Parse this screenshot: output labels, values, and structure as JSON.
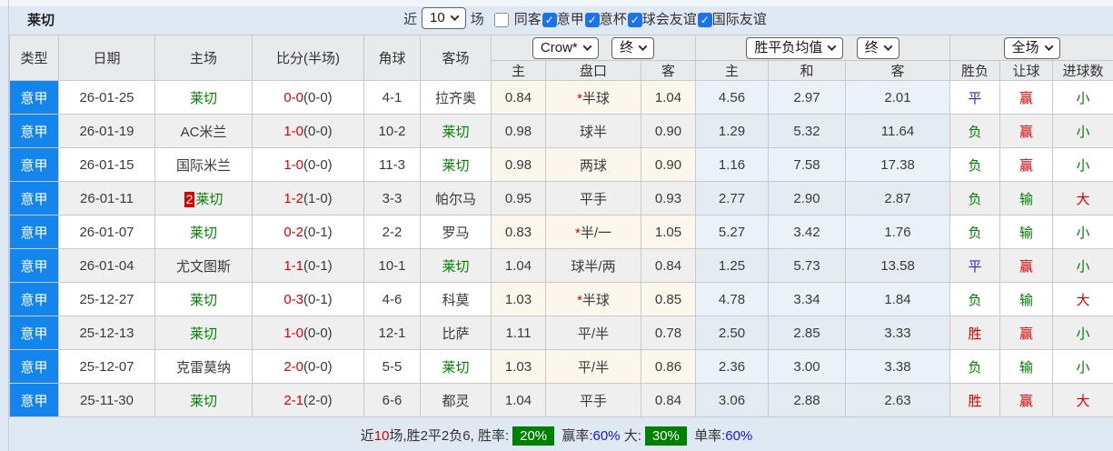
{
  "colors": {
    "league_badge_bg": "#1585ee",
    "lecce_green": "#008000",
    "score_red": "#e00000",
    "result_blue": "#2929c8",
    "rank_badge_bg": "#dd0000",
    "pct_badge_bg": "#008000",
    "checkbox_blue": "#1a73e8"
  },
  "page": {
    "title": "莱切",
    "controls": {
      "near_label": "近",
      "recent_count": "10",
      "matches_label": "场",
      "checkboxes": [
        {
          "label": "同客",
          "checked": false,
          "spaced": true
        },
        {
          "label": "意甲",
          "checked": true,
          "spaced": false
        },
        {
          "label": "意杯",
          "checked": true,
          "spaced": false
        },
        {
          "label": "球会友谊",
          "checked": true,
          "spaced": false
        },
        {
          "label": "国际友谊",
          "checked": true,
          "spaced": false
        }
      ]
    }
  },
  "table": {
    "selects": {
      "odds_company": "Crow*",
      "odds_time": "终",
      "avg_name": "胜平负均值",
      "avg_time": "终",
      "scope": "全场"
    },
    "columns": [
      "类型",
      "日期",
      "主场",
      "比分(半场)",
      "角球",
      "客场",
      "主",
      "盘口",
      "客",
      "主",
      "和",
      "客",
      "胜负",
      "让球",
      "进球数"
    ],
    "rows": [
      {
        "league": "意甲",
        "date": "26-01-25",
        "home": "莱切",
        "home_lecce": true,
        "home_badge": "",
        "score": "0-0",
        "half": "(0-0)",
        "corner": "4-1",
        "away": "拉齐奥",
        "away_lecce": false,
        "crow_home": "0.84",
        "handicap_star": true,
        "handicap": "半球",
        "crow_away": "1.04",
        "avg_home": "4.56",
        "avg_draw": "2.97",
        "avg_away": "2.01",
        "result": "平",
        "result_color": "blue",
        "let_result": "赢",
        "let_color": "red",
        "goal_result": "小",
        "goal_color": "green"
      },
      {
        "league": "意甲",
        "date": "26-01-19",
        "home": "AC米兰",
        "home_lecce": false,
        "home_badge": "",
        "score": "1-0",
        "half": "(0-0)",
        "corner": "10-2",
        "away": "莱切",
        "away_lecce": true,
        "crow_home": "0.98",
        "handicap_star": false,
        "handicap": "球半",
        "crow_away": "0.90",
        "avg_home": "1.29",
        "avg_draw": "5.32",
        "avg_away": "11.64",
        "result": "负",
        "result_color": "green",
        "let_result": "赢",
        "let_color": "red",
        "goal_result": "小",
        "goal_color": "green"
      },
      {
        "league": "意甲",
        "date": "26-01-15",
        "home": "国际米兰",
        "home_lecce": false,
        "home_badge": "",
        "score": "1-0",
        "half": "(0-0)",
        "corner": "11-3",
        "away": "莱切",
        "away_lecce": true,
        "crow_home": "0.98",
        "handicap_star": false,
        "handicap": "两球",
        "crow_away": "0.90",
        "avg_home": "1.16",
        "avg_draw": "7.58",
        "avg_away": "17.38",
        "result": "负",
        "result_color": "green",
        "let_result": "赢",
        "let_color": "red",
        "goal_result": "小",
        "goal_color": "green"
      },
      {
        "league": "意甲",
        "date": "26-01-11",
        "home": "莱切",
        "home_lecce": true,
        "home_badge": "2",
        "score": "1-2",
        "half": "(1-0)",
        "corner": "3-3",
        "away": "帕尔马",
        "away_lecce": false,
        "crow_home": "0.95",
        "handicap_star": false,
        "handicap": "平手",
        "crow_away": "0.93",
        "avg_home": "2.77",
        "avg_draw": "2.90",
        "avg_away": "2.87",
        "result": "负",
        "result_color": "green",
        "let_result": "输",
        "let_color": "green",
        "goal_result": "大",
        "goal_color": "red"
      },
      {
        "league": "意甲",
        "date": "26-01-07",
        "home": "莱切",
        "home_lecce": true,
        "home_badge": "",
        "score": "0-2",
        "half": "(0-1)",
        "corner": "2-2",
        "away": "罗马",
        "away_lecce": false,
        "crow_home": "0.83",
        "handicap_star": true,
        "handicap": "半/一",
        "crow_away": "1.05",
        "avg_home": "5.27",
        "avg_draw": "3.42",
        "avg_away": "1.76",
        "result": "负",
        "result_color": "green",
        "let_result": "输",
        "let_color": "green",
        "goal_result": "小",
        "goal_color": "green"
      },
      {
        "league": "意甲",
        "date": "26-01-04",
        "home": "尤文图斯",
        "home_lecce": false,
        "home_badge": "",
        "score": "1-1",
        "half": "(0-1)",
        "corner": "10-1",
        "away": "莱切",
        "away_lecce": true,
        "crow_home": "1.04",
        "handicap_star": false,
        "handicap": "球半/两",
        "crow_away": "0.84",
        "avg_home": "1.25",
        "avg_draw": "5.73",
        "avg_away": "13.58",
        "result": "平",
        "result_color": "blue",
        "let_result": "赢",
        "let_color": "red",
        "goal_result": "小",
        "goal_color": "green"
      },
      {
        "league": "意甲",
        "date": "25-12-27",
        "home": "莱切",
        "home_lecce": true,
        "home_badge": "",
        "score": "0-3",
        "half": "(0-1)",
        "corner": "4-6",
        "away": "科莫",
        "away_lecce": false,
        "crow_home": "1.03",
        "handicap_star": true,
        "handicap": "半球",
        "crow_away": "0.85",
        "avg_home": "4.78",
        "avg_draw": "3.34",
        "avg_away": "1.84",
        "result": "负",
        "result_color": "green",
        "let_result": "输",
        "let_color": "green",
        "goal_result": "大",
        "goal_color": "red"
      },
      {
        "league": "意甲",
        "date": "25-12-13",
        "home": "莱切",
        "home_lecce": true,
        "home_badge": "",
        "score": "1-0",
        "half": "(0-0)",
        "corner": "12-1",
        "away": "比萨",
        "away_lecce": false,
        "crow_home": "1.11",
        "handicap_star": false,
        "handicap": "平/半",
        "crow_away": "0.78",
        "avg_home": "2.50",
        "avg_draw": "2.85",
        "avg_away": "3.33",
        "result": "胜",
        "result_color": "red",
        "let_result": "赢",
        "let_color": "red",
        "goal_result": "小",
        "goal_color": "green"
      },
      {
        "league": "意甲",
        "date": "25-12-07",
        "home": "克雷莫纳",
        "home_lecce": false,
        "home_badge": "",
        "score": "2-0",
        "half": "(0-0)",
        "corner": "5-5",
        "away": "莱切",
        "away_lecce": true,
        "crow_home": "1.03",
        "handicap_star": false,
        "handicap": "平/半",
        "crow_away": "0.86",
        "avg_home": "2.36",
        "avg_draw": "3.00",
        "avg_away": "3.38",
        "result": "负",
        "result_color": "green",
        "let_result": "输",
        "let_color": "green",
        "goal_result": "小",
        "goal_color": "green"
      },
      {
        "league": "意甲",
        "date": "25-11-30",
        "home": "莱切",
        "home_lecce": true,
        "home_badge": "",
        "score": "2-1",
        "half": "(2-0)",
        "corner": "6-6",
        "away": "都灵",
        "away_lecce": false,
        "crow_home": "1.04",
        "handicap_star": false,
        "handicap": "平手",
        "crow_away": "0.84",
        "avg_home": "3.06",
        "avg_draw": "2.88",
        "avg_away": "2.63",
        "result": "胜",
        "result_color": "red",
        "let_result": "赢",
        "let_color": "red",
        "goal_result": "大",
        "goal_color": "red"
      }
    ]
  },
  "footer": {
    "seg1": "近",
    "games": "10",
    "seg2": "场,胜2平2负6, 胜率:",
    "win_rate": "20%",
    "seg3": "赢率:",
    "win_pct": "60%",
    "seg4": "大:",
    "big_rate": "30%",
    "seg5": "单率:",
    "single_pct": "60%"
  }
}
